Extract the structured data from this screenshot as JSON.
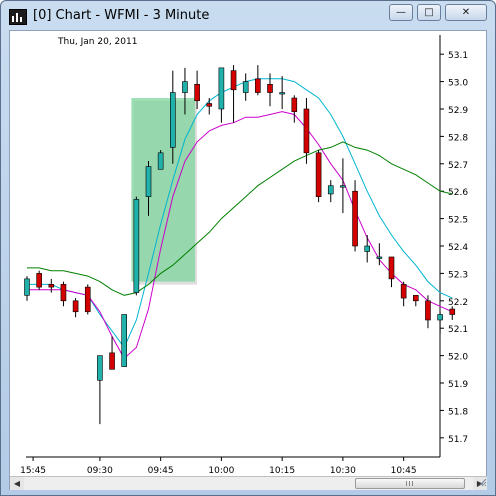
{
  "window": {
    "title": "[0]  Chart - WFMI - 3 Minute",
    "minimize_glyph": "—",
    "maximize_glyph": "□",
    "close_glyph": "✕",
    "app_icon": "candlestick-chart-icon",
    "frame_color": "#b3cbe6"
  },
  "chart": {
    "date_label": "Thu, Jan 20, 2011",
    "up_color": "#20b2aa",
    "down_color": "#d40000",
    "ma_fast_color": "#00b5d0",
    "ma_mid_color": "#cc00cc",
    "ma_slow_color": "#008000",
    "highlight_color": "#7fd49c"
  },
  "scrollbar": {
    "left_glyph": "◀",
    "right_glyph": "▶",
    "position": 0.82
  },
  "chart_data": {
    "type": "candlestick",
    "y_axis": {
      "ylim": [
        51.63,
        53.17
      ],
      "ticks": [
        "53.1",
        "53.0",
        "52.9",
        "52.8",
        "52.7",
        "52.6",
        "52.5",
        "52.4",
        "52.3",
        "52.2",
        "52.1",
        "52.0",
        "51.9",
        "51.8",
        "51.7"
      ]
    },
    "x_axis": {
      "tick_labels": [
        "15:45",
        "09:30",
        "09:45",
        "10:00",
        "10:15",
        "10:30",
        "10:45"
      ],
      "tick_bar_index": [
        0.5,
        6,
        11,
        16,
        21,
        26,
        31
      ]
    },
    "highlight": {
      "from_index": 9,
      "to_index": 13.5,
      "y_from": 52.27,
      "y_to": 52.94
    },
    "candles": [
      {
        "o": 52.22,
        "h": 52.29,
        "l": 52.2,
        "c": 52.28
      },
      {
        "o": 52.3,
        "h": 52.31,
        "l": 52.24,
        "c": 52.25
      },
      {
        "o": 52.26,
        "h": 52.28,
        "l": 52.23,
        "c": 52.25
      },
      {
        "o": 52.26,
        "h": 52.27,
        "l": 52.18,
        "c": 52.2
      },
      {
        "o": 52.2,
        "h": 52.21,
        "l": 52.14,
        "c": 52.16
      },
      {
        "o": 52.25,
        "h": 52.26,
        "l": 52.15,
        "c": 52.16
      },
      {
        "o": 51.91,
        "h": 52.0,
        "l": 51.75,
        "c": 52.0
      },
      {
        "o": 52.01,
        "h": 52.07,
        "l": 51.96,
        "c": 51.95
      },
      {
        "o": 51.96,
        "h": 52.15,
        "l": 51.96,
        "c": 52.15
      },
      {
        "o": 52.23,
        "h": 52.58,
        "l": 52.22,
        "c": 52.57
      },
      {
        "o": 52.58,
        "h": 52.71,
        "l": 52.51,
        "c": 52.69
      },
      {
        "o": 52.68,
        "h": 52.75,
        "l": 52.68,
        "c": 52.74
      },
      {
        "o": 52.76,
        "h": 53.04,
        "l": 52.7,
        "c": 52.96
      },
      {
        "o": 52.96,
        "h": 53.05,
        "l": 52.88,
        "c": 53.0
      },
      {
        "o": 52.99,
        "h": 53.04,
        "l": 52.9,
        "c": 52.93
      },
      {
        "o": 52.92,
        "h": 52.94,
        "l": 52.88,
        "c": 52.91
      },
      {
        "o": 52.9,
        "h": 53.05,
        "l": 52.85,
        "c": 53.05
      },
      {
        "o": 53.04,
        "h": 53.06,
        "l": 52.85,
        "c": 52.97
      },
      {
        "o": 52.96,
        "h": 53.03,
        "l": 52.93,
        "c": 53.0
      },
      {
        "o": 53.01,
        "h": 53.06,
        "l": 52.95,
        "c": 52.96
      },
      {
        "o": 52.99,
        "h": 53.03,
        "l": 52.91,
        "c": 52.96
      },
      {
        "o": 52.96,
        "h": 53.02,
        "l": 52.9,
        "c": 52.96
      },
      {
        "o": 52.94,
        "h": 52.95,
        "l": 52.85,
        "c": 52.89
      },
      {
        "o": 52.9,
        "h": 52.94,
        "l": 52.7,
        "c": 52.74
      },
      {
        "o": 52.74,
        "h": 52.75,
        "l": 52.56,
        "c": 52.58
      },
      {
        "o": 52.59,
        "h": 52.64,
        "l": 52.56,
        "c": 52.62
      },
      {
        "o": 52.62,
        "h": 52.72,
        "l": 52.52,
        "c": 52.62
      },
      {
        "o": 52.6,
        "h": 52.64,
        "l": 52.38,
        "c": 52.4
      },
      {
        "o": 52.38,
        "h": 52.44,
        "l": 52.34,
        "c": 52.4
      },
      {
        "o": 52.36,
        "h": 52.41,
        "l": 52.33,
        "c": 52.36
      },
      {
        "o": 52.36,
        "h": 52.36,
        "l": 52.25,
        "c": 52.28
      },
      {
        "o": 52.26,
        "h": 52.27,
        "l": 52.18,
        "c": 52.21
      },
      {
        "o": 52.22,
        "h": 52.22,
        "l": 52.18,
        "c": 52.2
      },
      {
        "o": 52.2,
        "h": 52.22,
        "l": 52.1,
        "c": 52.13
      },
      {
        "o": 52.13,
        "h": 52.16,
        "l": 52.08,
        "c": 52.15
      },
      {
        "o": 52.17,
        "h": 52.18,
        "l": 52.13,
        "c": 52.15
      }
    ],
    "series": [
      {
        "name": "",
        "color": "#00b5d0",
        "values": [
          52.26,
          52.26,
          52.26,
          52.24,
          52.23,
          52.22,
          52.15,
          52.09,
          52.03,
          52.13,
          52.3,
          52.48,
          52.64,
          52.79,
          52.88,
          52.93,
          52.96,
          52.98,
          53.0,
          53.01,
          53.01,
          53.01,
          53.0,
          52.97,
          52.94,
          52.88,
          52.8,
          52.7,
          52.6,
          52.51,
          52.44,
          52.38,
          52.33,
          52.27,
          52.23,
          52.21
        ]
      },
      {
        "name": "",
        "color": "#cc00cc",
        "values": [
          52.24,
          52.24,
          52.24,
          52.24,
          52.23,
          52.22,
          52.16,
          52.07,
          51.99,
          52.03,
          52.17,
          52.39,
          52.58,
          52.71,
          52.78,
          52.82,
          52.84,
          52.85,
          52.87,
          52.87,
          52.88,
          52.89,
          52.88,
          52.83,
          52.77,
          52.7,
          52.64,
          52.53,
          52.43,
          52.35,
          52.3,
          52.26,
          52.24,
          52.2,
          52.18,
          52.16
        ]
      },
      {
        "name": "",
        "color": "#008000",
        "values": [
          52.32,
          52.32,
          52.31,
          52.31,
          52.3,
          52.29,
          52.27,
          52.24,
          52.22,
          52.23,
          52.26,
          52.3,
          52.33,
          52.37,
          52.41,
          52.45,
          52.5,
          52.54,
          52.58,
          52.62,
          52.65,
          52.68,
          52.71,
          52.73,
          52.75,
          52.76,
          52.78,
          52.76,
          52.75,
          52.73,
          52.7,
          52.68,
          52.66,
          52.63,
          52.6,
          52.59
        ]
      }
    ]
  }
}
